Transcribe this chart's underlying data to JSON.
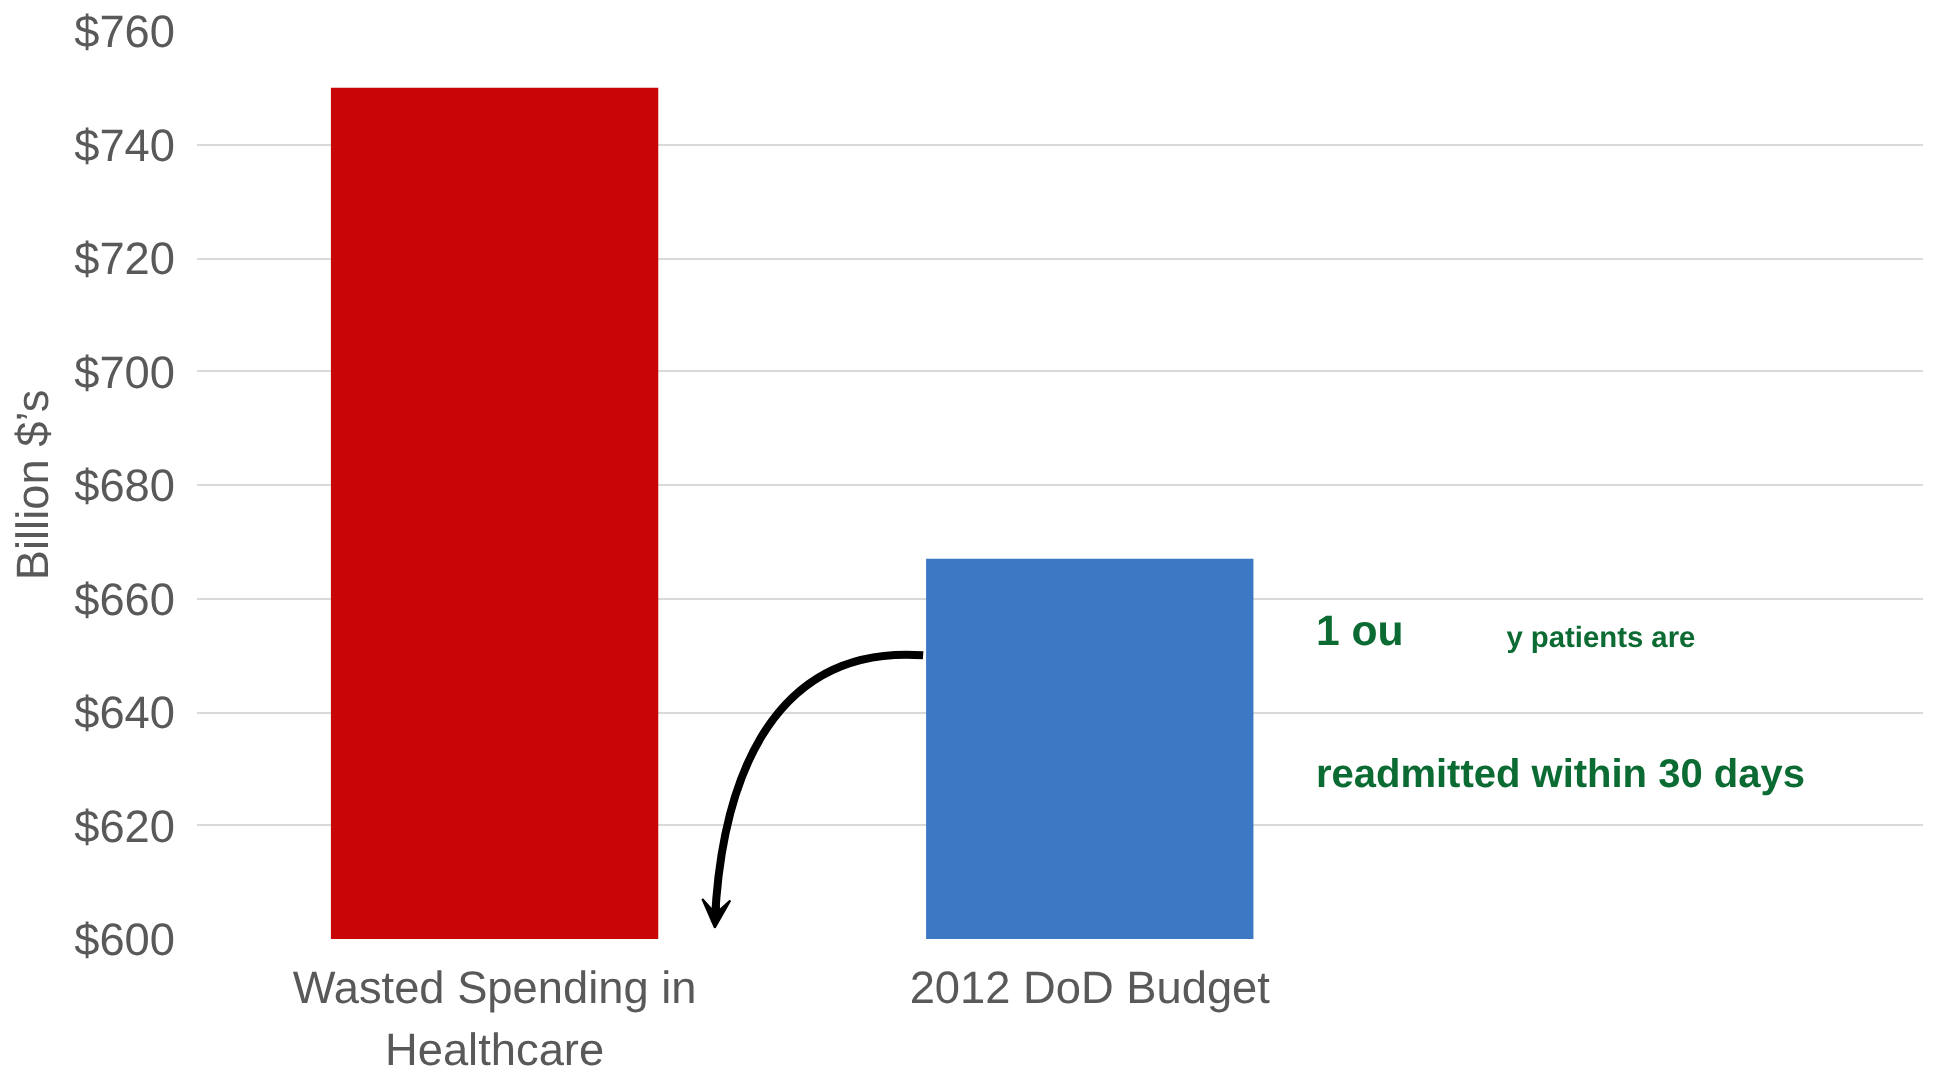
{
  "chart_data": {
    "type": "bar",
    "ylabel": "Billion $’s",
    "categories": [
      "Wasted Spending in Healthcare",
      "2012 DoD Budget"
    ],
    "colors": [
      "#c80606",
      "#3d78c4"
    ],
    "values": [
      750,
      667
    ],
    "ylim": [
      600,
      760
    ],
    "yticks": [
      {
        "value": 600,
        "label": "$600"
      },
      {
        "value": 620,
        "label": "$620"
      },
      {
        "value": 640,
        "label": "$640"
      },
      {
        "value": 660,
        "label": "$660"
      },
      {
        "value": 680,
        "label": "$680"
      },
      {
        "value": 700,
        "label": "$700"
      },
      {
        "value": 720,
        "label": "$720"
      },
      {
        "value": 740,
        "label": "$740"
      },
      {
        "value": 760,
        "label": "$760"
      }
    ],
    "grid": "y",
    "annotations": [
      "1 ou",
      "y patients are",
      "readmitted within 30 days"
    ]
  }
}
